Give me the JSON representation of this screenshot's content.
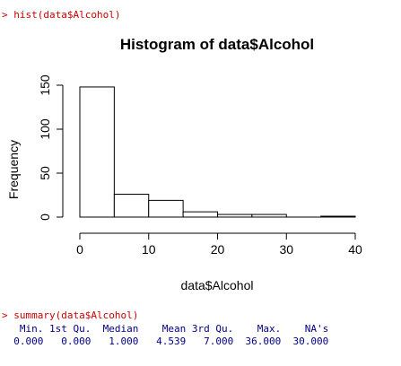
{
  "console": {
    "command1": "> hist(data$Alcohol)",
    "command2": "> summary(data$Alcohol)",
    "summary_header": "   Min. 1st Qu.  Median    Mean 3rd Qu.    Max.    NA's",
    "summary_values": "  0.000   0.000   1.000   4.539   7.000  36.000  30.000"
  },
  "colors": {
    "command": "#cc0000",
    "output": "#000080",
    "bars": "#ffffff",
    "stroke": "#000000"
  },
  "chart_data": {
    "type": "bar",
    "title": "Histogram of data$Alcohol",
    "xlabel": "data$Alcohol",
    "ylabel": "Frequency",
    "bins": [
      [
        0,
        5
      ],
      [
        5,
        10
      ],
      [
        10,
        15
      ],
      [
        15,
        20
      ],
      [
        20,
        25
      ],
      [
        25,
        30
      ],
      [
        30,
        35
      ],
      [
        35,
        40
      ]
    ],
    "values": [
      148,
      26,
      19,
      6,
      3,
      3,
      0,
      1
    ],
    "xlim": [
      0,
      40
    ],
    "ylim": [
      0,
      150
    ],
    "xticks": [
      "0",
      "10",
      "20",
      "30",
      "40"
    ],
    "yticks": [
      "0",
      "50",
      "100",
      "150"
    ],
    "grid": false
  }
}
